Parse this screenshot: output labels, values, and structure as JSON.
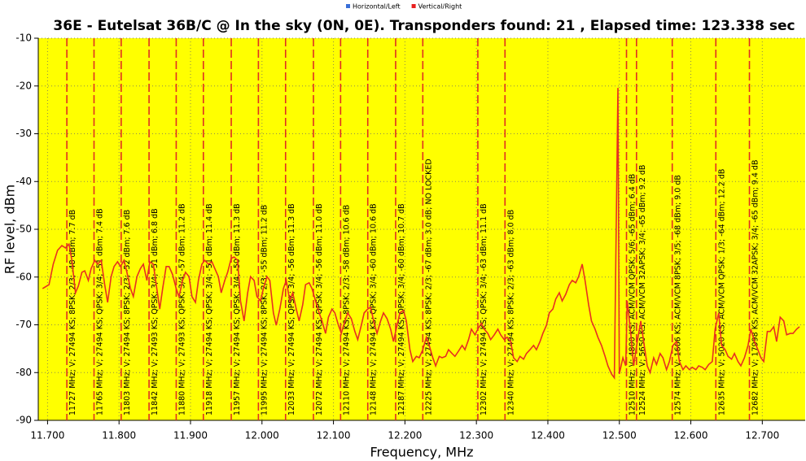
{
  "chart_data": {
    "type": "line",
    "title": "36E - Eutelsat 36B/C @ In the sky (0N, 0E). Transponders found: 21 , Elapsed time: 123.338 sec",
    "xlabel": "Frequency, MHz",
    "ylabel": "RF level, dBm",
    "legend": [
      {
        "name": "Horizontal/Left",
        "color": "#3a6fd8"
      },
      {
        "name": "Vertical/Right",
        "color": "#e82020"
      }
    ],
    "xlim": [
      11687,
      12760
    ],
    "ylim": [
      -90,
      -10
    ],
    "xticks": [
      {
        "value": 11700,
        "label": "11.700"
      },
      {
        "value": 11800,
        "label": "11.800"
      },
      {
        "value": 11900,
        "label": "11.900"
      },
      {
        "value": 12000,
        "label": "12.000"
      },
      {
        "value": 12100,
        "label": "12.100"
      },
      {
        "value": 12200,
        "label": "12.200"
      },
      {
        "value": 12300,
        "label": "12.300"
      },
      {
        "value": 12400,
        "label": "12.400"
      },
      {
        "value": 12500,
        "label": "12.500"
      },
      {
        "value": 12600,
        "label": "12.600"
      },
      {
        "value": 12700,
        "label": "12.700"
      }
    ],
    "yticks": [
      -10,
      -20,
      -30,
      -40,
      -50,
      -60,
      -70,
      -80,
      -90
    ],
    "grid": true,
    "background": "#ffff00",
    "series": [
      {
        "name": "Vertical/Right",
        "color": "#e83020",
        "x": [
          11693,
          11702,
          11708,
          11714,
          11720,
          11725,
          11730,
          11734,
          11739,
          11743,
          11748,
          11752,
          11757,
          11761,
          11766,
          11770,
          11775,
          11780,
          11784,
          11789,
          11793,
          11798,
          11802,
          11807,
          11811,
          11816,
          11820,
          11825,
          11830,
          11834,
          11839,
          11843,
          11848,
          11852,
          11857,
          11861,
          11866,
          11870,
          11875,
          11880,
          11884,
          11889,
          11893,
          11898,
          11902,
          11907,
          11911,
          11916,
          11920,
          11925,
          11930,
          11934,
          11939,
          11943,
          11948,
          11952,
          11957,
          11961,
          11966,
          11970,
          11975,
          11980,
          11984,
          11989,
          11993,
          11998,
          12002,
          12007,
          12011,
          12016,
          12020,
          12025,
          12030,
          12034,
          12039,
          12043,
          12048,
          12052,
          12057,
          12061,
          12066,
          12070,
          12075,
          12080,
          12084,
          12089,
          12093,
          12098,
          12102,
          12107,
          12111,
          12116,
          12120,
          12125,
          12130,
          12134,
          12139,
          12143,
          12148,
          12152,
          12157,
          12161,
          12166,
          12170,
          12175,
          12180,
          12184,
          12189,
          12193,
          12198,
          12202,
          12207,
          12211,
          12216,
          12220,
          12225,
          12230,
          12234,
          12239,
          12243,
          12248,
          12252,
          12257,
          12261,
          12266,
          12270,
          12275,
          12280,
          12284,
          12289,
          12293,
          12298,
          12302,
          12307,
          12311,
          12316,
          12320,
          12325,
          12330,
          12334,
          12339,
          12343,
          12348,
          12352,
          12357,
          12361,
          12366,
          12370,
          12375,
          12380,
          12384,
          12389,
          12393,
          12398,
          12402,
          12407,
          12411,
          12416,
          12420,
          12425,
          12430,
          12434,
          12439,
          12443,
          12448,
          12452,
          12457,
          12461,
          12466,
          12470,
          12475,
          12480,
          12484,
          12489,
          12493,
          12498,
          12500,
          12505,
          12509,
          12511,
          12516,
          12520,
          12525,
          12530,
          12534,
          12539,
          12543,
          12548,
          12552,
          12557,
          12561,
          12566,
          12570,
          12575,
          12580,
          12584,
          12589,
          12593,
          12598,
          12602,
          12607,
          12611,
          12616,
          12620,
          12625,
          12630,
          12634,
          12639,
          12643,
          12648,
          12652,
          12657,
          12661,
          12666,
          12670,
          12675,
          12680,
          12684,
          12689,
          12693,
          12698,
          12702,
          12707,
          12711,
          12716,
          12720,
          12725,
          12730,
          12734,
          12739,
          12743,
          12748,
          12752
        ],
        "values": [
          -62.4,
          -61.6,
          -57.3,
          -54.4,
          -53.4,
          -53.9,
          -53.1,
          -56.5,
          -63.3,
          -61.9,
          -59.0,
          -58.7,
          -60.7,
          -58.2,
          -56.5,
          -57.3,
          -56.5,
          -61.6,
          -65.3,
          -59.9,
          -57.8,
          -56.8,
          -57.8,
          -56.5,
          -59.0,
          -62.4,
          -64.1,
          -59.9,
          -58.2,
          -57.3,
          -60.7,
          -56.8,
          -57.3,
          -61.6,
          -66.7,
          -62.4,
          -57.8,
          -57.8,
          -59.5,
          -62.4,
          -64.1,
          -60.7,
          -59.0,
          -59.9,
          -64.1,
          -65.3,
          -60.7,
          -57.3,
          -56.5,
          -57.3,
          -56.8,
          -58.2,
          -59.9,
          -63.3,
          -60.7,
          -59.0,
          -56.1,
          -55.8,
          -56.5,
          -65.0,
          -69.2,
          -63.3,
          -59.9,
          -60.7,
          -64.1,
          -65.0,
          -62.4,
          -59.9,
          -60.7,
          -67.5,
          -70.1,
          -66.7,
          -62.4,
          -60.7,
          -65.0,
          -63.3,
          -66.7,
          -69.2,
          -65.8,
          -61.6,
          -61.2,
          -62.4,
          -65.0,
          -67.5,
          -69.2,
          -71.8,
          -68.4,
          -66.7,
          -67.5,
          -70.1,
          -71.8,
          -69.2,
          -67.5,
          -68.7,
          -71.4,
          -73.1,
          -70.1,
          -67.5,
          -66.7,
          -66.3,
          -69.7,
          -71.8,
          -69.2,
          -67.5,
          -68.7,
          -70.9,
          -73.5,
          -70.1,
          -67.5,
          -67.0,
          -69.2,
          -75.2,
          -77.7,
          -76.6,
          -76.9,
          -75.2,
          -72.6,
          -74.3,
          -76.9,
          -78.6,
          -76.6,
          -76.9,
          -76.6,
          -75.2,
          -76.0,
          -76.6,
          -75.5,
          -74.3,
          -75.2,
          -73.1,
          -70.9,
          -72.1,
          -70.9,
          -69.7,
          -70.9,
          -71.8,
          -73.1,
          -72.1,
          -70.9,
          -72.1,
          -73.1,
          -72.6,
          -73.5,
          -76.9,
          -77.7,
          -76.6,
          -77.2,
          -76.0,
          -75.2,
          -74.3,
          -75.2,
          -73.5,
          -71.8,
          -70.1,
          -67.5,
          -66.7,
          -64.6,
          -63.3,
          -65.0,
          -63.6,
          -61.6,
          -60.7,
          -61.2,
          -59.9,
          -57.3,
          -60.7,
          -65.8,
          -69.2,
          -70.9,
          -72.6,
          -74.3,
          -76.6,
          -78.6,
          -80.3,
          -81.1,
          -20.4,
          -80.3,
          -76.9,
          -78.6,
          -65.0,
          -71.8,
          -78.6,
          -73.5,
          -69.2,
          -73.5,
          -78.6,
          -80.0,
          -76.9,
          -78.3,
          -76.0,
          -76.9,
          -79.4,
          -77.7,
          -74.3,
          -73.5,
          -77.7,
          -79.4,
          -78.6,
          -79.4,
          -78.9,
          -79.4,
          -78.6,
          -78.9,
          -79.4,
          -78.3,
          -77.7,
          -70.9,
          -67.5,
          -74.3,
          -75.2,
          -76.6,
          -77.2,
          -76.0,
          -77.7,
          -78.6,
          -76.9,
          -74.3,
          -70.9,
          -73.5,
          -74.9,
          -76.9,
          -77.7,
          -71.4,
          -71.4,
          -70.4,
          -73.5,
          -68.4,
          -69.2,
          -72.1,
          -71.8,
          -71.8,
          -70.9,
          -70.4
        ]
      }
    ],
    "transponders": [
      {
        "frequency": 11727,
        "label": "11727 MHz; V; 27494 KS; 8PSK; 2/3; -48 dBm; 7.7 dB"
      },
      {
        "frequency": 11765,
        "label": "11765 MHz; V; 27494 KS; QPSK; 3/4; -51 dBm; 7.4 dB"
      },
      {
        "frequency": 11803,
        "label": "11803 MHz; V; 27494 KS; 8PSK; 2/3; -52 dBm; 7.6 dB"
      },
      {
        "frequency": 11842,
        "label": "11842 MHz; V; 27493 KS; QPSK; 3/4; -51 dBm; 6.8 dB"
      },
      {
        "frequency": 11880,
        "label": "11880 MHz; V; 27493 KS; QPSK; 3/4; -57 dBm; 11.2 dB"
      },
      {
        "frequency": 11918,
        "label": "11918 MHz; V; 27494 KS; QPSK; 3/4; -51 dBm; 11.4 dB"
      },
      {
        "frequency": 11957,
        "label": "11957 MHz; V; 27494 KS; QPSK; 3/4; -50 dBm; 11.3 dB"
      },
      {
        "frequency": 11995,
        "label": "11995 MHz; V; 27494 KS; 8PSK; 2/3; -55 dBm; 11.2 dB"
      },
      {
        "frequency": 12033,
        "label": "12033 MHz; V; 27494 KS; QPSK; 3/4; -56 dBm; 11.3 dB"
      },
      {
        "frequency": 12072,
        "label": "12072 MHz; V; 27494 KS; QPSK; 3/4; -56 dBm; 11.0 dB"
      },
      {
        "frequency": 12110,
        "label": "12110 MHz; V; 27494 KS; 8PSK; 2/3; -58 dBm; 10.6 dB"
      },
      {
        "frequency": 12148,
        "label": "12148 MHz; V; 27494 KS; QPSK; 3/4; -60 dBm; 10.6 dB"
      },
      {
        "frequency": 12187,
        "label": "12187 MHz; V; 27494 KS; QPSK; 3/4; -60 dBm; 10.7 dB"
      },
      {
        "frequency": 12225,
        "label": "12225 MHz; V; 27494 KS; 8PSK; 2/3; -67 dBm; 3.0 dB; NO LOCKED"
      },
      {
        "frequency": 12302,
        "label": "12302 MHz; V; 27494 KS; QPSK; 3/4; -63 dBm; 11.1 dB"
      },
      {
        "frequency": 12340,
        "label": "12340 MHz; V; 27494 KS; 8PSK; 2/3; -63 dBm; 8.0 dB"
      },
      {
        "frequency": 12510,
        "label": "12510 MHz; V; 4800 KS; ACM/VCM QPSK; 5/6; -65 dBm; 6.4 dB"
      },
      {
        "frequency": 12524,
        "label": "12524 MHz; V; 5650 KS; ACM/VCM 32APSK; 3/4; -65 dBm; 9.2 dB"
      },
      {
        "frequency": 12574,
        "label": "12574 MHz; V; 1666 KS; ACM/VCM 8PSK; 3/5; -68 dBm; 9.0 dB"
      },
      {
        "frequency": 12635,
        "label": "12635 MHz; V; 5020 KS; ACM/VCM QPSK; 1/3; -64 dBm; 12.2 dB"
      },
      {
        "frequency": 12682,
        "label": "12682 MHz; V; 17998 KS; ACM/VCM 32APSK; 3/4; -65 dBm; 9.4 dB"
      }
    ],
    "transponder_color": "#e03020"
  }
}
